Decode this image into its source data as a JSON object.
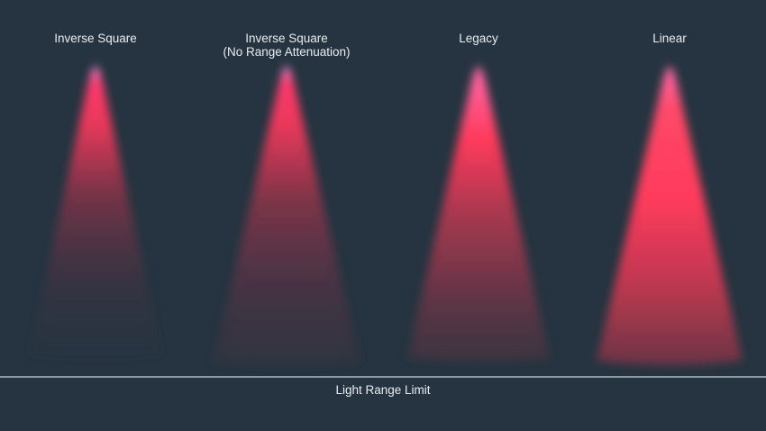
{
  "cones": [
    {
      "label": "Inverse Square",
      "sublabel": ""
    },
    {
      "label": "Inverse Square",
      "sublabel": "(No Range Attenuation)"
    },
    {
      "label": "Legacy",
      "sublabel": ""
    },
    {
      "label": "Linear",
      "sublabel": ""
    }
  ],
  "range_limit_label": "Light Range Limit",
  "colors": {
    "background": "#253440",
    "light": "#ff3a5c",
    "hotspot": "#ff8cf0"
  }
}
